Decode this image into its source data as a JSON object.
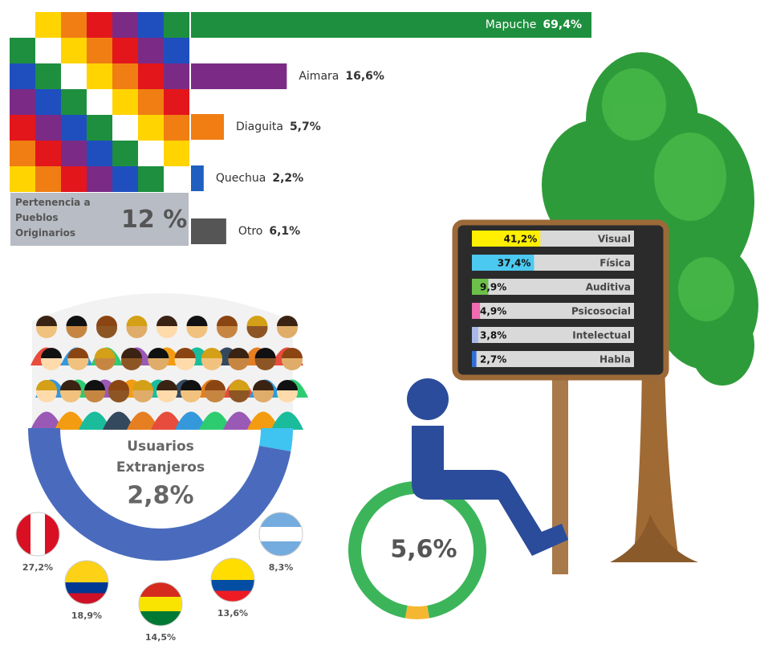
{
  "chart_data": [
    {
      "type": "bar",
      "orientation": "horizontal",
      "title": "Pertenencia a Pueblos Originarios",
      "headline": "12 %",
      "categories": [
        "Mapuche",
        "Aimara",
        "Diaguita",
        "Quechua",
        "Otro"
      ],
      "values": [
        69.4,
        16.6,
        5.7,
        2.2,
        6.1
      ],
      "value_labels": [
        "69,4%",
        "16,6%",
        "5,7%",
        "2,2%",
        "6,1%"
      ],
      "colors": [
        "#1e8f3e",
        "#7b2b86",
        "#f07e12",
        "#1f5fbf",
        "#555555"
      ]
    },
    {
      "type": "bar",
      "orientation": "horizontal",
      "categories": [
        "Visual",
        "Física",
        "Auditiva",
        "Psicosocial",
        "Intelectual",
        "Habla"
      ],
      "values": [
        41.2,
        37.4,
        9.9,
        4.9,
        3.8,
        2.7
      ],
      "value_labels": [
        "41,2%",
        "37,4%",
        "9,9%",
        "4,9%",
        "3,8%",
        "2,7%"
      ],
      "colors": [
        "#ffef00",
        "#4cc9f0",
        "#6cc04a",
        "#f06bb0",
        "#a8b8e8",
        "#2f6fd8"
      ]
    },
    {
      "type": "donut",
      "title": "Usuarios Extranjeros",
      "values": [
        2.8
      ],
      "value_labels": [
        "2,8%"
      ],
      "colors": [
        "#4a6bbd",
        "#3fc3f0"
      ],
      "countries": {
        "values": [
          27.2,
          18.9,
          14.5,
          13.6,
          8.3
        ],
        "value_labels": [
          "27,2%",
          "18,9%",
          "14,5%",
          "13,6%",
          "8,3%"
        ]
      }
    },
    {
      "type": "donut",
      "values": [
        5.6
      ],
      "value_labels": [
        "5,6%"
      ],
      "colors": [
        "#3cb55a",
        "#f5b731"
      ]
    }
  ]
}
